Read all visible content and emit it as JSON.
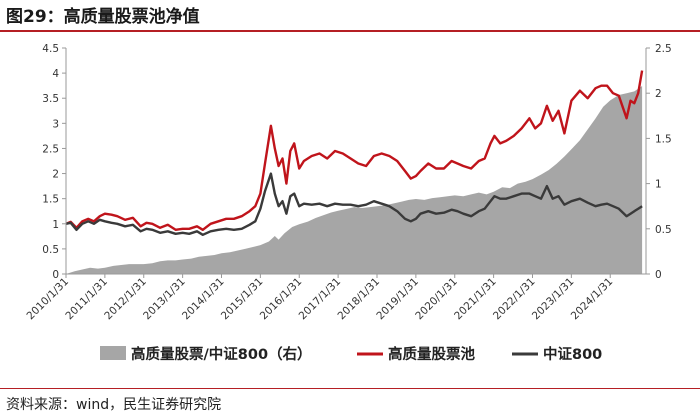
{
  "figure": {
    "title": "图29：高质量股票池净值",
    "source": "资料来源：wind，民生证券研究院"
  },
  "colors": {
    "area": "#a6a6a6",
    "pool": "#c0141b",
    "csi800": "#3a3a3a",
    "accent_rule": "#b51f24"
  },
  "chart_data": {
    "type": "line",
    "title": "",
    "xlabel": "",
    "ylabel": "",
    "ylim": [
      0,
      4.5
    ],
    "y2lim": [
      0,
      2.5
    ],
    "yticks": [
      "0",
      "0.5",
      "1",
      "1.5",
      "2",
      "2.5",
      "3",
      "3.5",
      "4",
      "4.5"
    ],
    "y2ticks": [
      "0",
      "0.5",
      "1",
      "1.5",
      "2",
      "2.5"
    ],
    "x_tick_labels": [
      "2010/1/31",
      "2011/1/31",
      "2012/1/31",
      "2013/1/31",
      "2014/1/31",
      "2015/1/31",
      "2016/1/31",
      "2017/1/31",
      "2018/1/31",
      "2019/1/31",
      "2020/1/31",
      "2021/1/31",
      "2022/1/31",
      "2023/1/31",
      "2024/1/31"
    ],
    "x_range": [
      2010.08,
      2025.0
    ],
    "grid": false,
    "legend_position": "bottom",
    "series": [
      {
        "name": "高质量股票/中证800（右）",
        "type": "area",
        "axis": "right",
        "x": [
          2010.08,
          2010.3,
          2010.5,
          2010.7,
          2010.9,
          2011.08,
          2011.3,
          2011.5,
          2011.7,
          2011.9,
          2012.08,
          2012.3,
          2012.5,
          2012.7,
          2012.9,
          2013.08,
          2013.3,
          2013.5,
          2013.7,
          2013.9,
          2014.08,
          2014.3,
          2014.5,
          2014.7,
          2014.9,
          2015.08,
          2015.3,
          2015.45,
          2015.55,
          2015.7,
          2015.9,
          2016.08,
          2016.3,
          2016.5,
          2016.7,
          2016.9,
          2017.08,
          2017.3,
          2017.5,
          2017.7,
          2017.9,
          2018.08,
          2018.3,
          2018.5,
          2018.7,
          2018.9,
          2019.08,
          2019.3,
          2019.5,
          2019.7,
          2019.9,
          2020.08,
          2020.3,
          2020.5,
          2020.7,
          2020.9,
          2021.08,
          2021.3,
          2021.5,
          2021.7,
          2021.9,
          2022.08,
          2022.3,
          2022.5,
          2022.7,
          2022.9,
          2023.08,
          2023.3,
          2023.5,
          2023.7,
          2023.9,
          2024.08,
          2024.3,
          2024.5,
          2024.7,
          2024.9
        ],
        "values": [
          0.0,
          0.03,
          0.05,
          0.07,
          0.06,
          0.07,
          0.09,
          0.1,
          0.11,
          0.11,
          0.11,
          0.12,
          0.14,
          0.15,
          0.15,
          0.16,
          0.17,
          0.19,
          0.2,
          0.21,
          0.23,
          0.24,
          0.26,
          0.28,
          0.3,
          0.32,
          0.36,
          0.42,
          0.38,
          0.45,
          0.52,
          0.55,
          0.58,
          0.62,
          0.65,
          0.68,
          0.7,
          0.72,
          0.74,
          0.73,
          0.74,
          0.75,
          0.76,
          0.78,
          0.8,
          0.82,
          0.83,
          0.82,
          0.84,
          0.85,
          0.86,
          0.87,
          0.86,
          0.88,
          0.9,
          0.88,
          0.91,
          0.96,
          0.95,
          1.0,
          1.02,
          1.05,
          1.1,
          1.15,
          1.22,
          1.3,
          1.38,
          1.48,
          1.6,
          1.72,
          1.85,
          1.92,
          1.98,
          2.0,
          2.02,
          2.08
        ]
      },
      {
        "name": "高质量股票池",
        "type": "line",
        "axis": "left",
        "x": [
          2010.08,
          2010.2,
          2010.35,
          2010.5,
          2010.65,
          2010.8,
          2010.95,
          2011.08,
          2011.25,
          2011.4,
          2011.6,
          2011.8,
          2012.0,
          2012.15,
          2012.3,
          2012.5,
          2012.7,
          2012.9,
          2013.08,
          2013.25,
          2013.45,
          2013.6,
          2013.8,
          2014.0,
          2014.2,
          2014.4,
          2014.6,
          2014.8,
          2014.95,
          2015.08,
          2015.2,
          2015.35,
          2015.45,
          2015.55,
          2015.65,
          2015.75,
          2015.85,
          2015.95,
          2016.08,
          2016.2,
          2016.4,
          2016.6,
          2016.8,
          2017.0,
          2017.2,
          2017.4,
          2017.6,
          2017.8,
          2018.0,
          2018.2,
          2018.4,
          2018.6,
          2018.8,
          2018.95,
          2019.08,
          2019.2,
          2019.4,
          2019.6,
          2019.8,
          2020.0,
          2020.15,
          2020.3,
          2020.5,
          2020.7,
          2020.85,
          2021.0,
          2021.1,
          2021.25,
          2021.4,
          2021.6,
          2021.8,
          2022.0,
          2022.15,
          2022.3,
          2022.45,
          2022.6,
          2022.75,
          2022.9,
          2023.08,
          2023.3,
          2023.5,
          2023.7,
          2023.85,
          2024.0,
          2024.15,
          2024.3,
          2024.5,
          2024.6,
          2024.7,
          2024.8,
          2024.9
        ],
        "values": [
          1.0,
          1.04,
          0.92,
          1.05,
          1.1,
          1.05,
          1.15,
          1.2,
          1.18,
          1.15,
          1.08,
          1.12,
          0.95,
          1.02,
          1.0,
          0.92,
          0.98,
          0.88,
          0.9,
          0.9,
          0.95,
          0.88,
          1.0,
          1.05,
          1.1,
          1.1,
          1.15,
          1.25,
          1.35,
          1.6,
          2.2,
          2.95,
          2.5,
          2.15,
          2.3,
          1.8,
          2.45,
          2.6,
          2.1,
          2.25,
          2.35,
          2.4,
          2.3,
          2.45,
          2.4,
          2.3,
          2.2,
          2.15,
          2.35,
          2.4,
          2.35,
          2.25,
          2.05,
          1.9,
          1.95,
          2.05,
          2.2,
          2.1,
          2.1,
          2.25,
          2.2,
          2.15,
          2.1,
          2.25,
          2.3,
          2.6,
          2.75,
          2.6,
          2.65,
          2.75,
          2.9,
          3.1,
          2.9,
          3.0,
          3.35,
          3.05,
          3.25,
          2.8,
          3.45,
          3.65,
          3.5,
          3.7,
          3.75,
          3.75,
          3.6,
          3.55,
          3.1,
          3.45,
          3.4,
          3.6,
          4.05
        ]
      },
      {
        "name": "中证800",
        "type": "line",
        "axis": "left",
        "x": [
          2010.08,
          2010.2,
          2010.35,
          2010.5,
          2010.65,
          2010.8,
          2010.95,
          2011.08,
          2011.25,
          2011.4,
          2011.6,
          2011.8,
          2012.0,
          2012.15,
          2012.3,
          2012.5,
          2012.7,
          2012.9,
          2013.08,
          2013.25,
          2013.45,
          2013.6,
          2013.8,
          2014.0,
          2014.2,
          2014.4,
          2014.6,
          2014.8,
          2014.95,
          2015.08,
          2015.2,
          2015.35,
          2015.45,
          2015.55,
          2015.65,
          2015.75,
          2015.85,
          2015.95,
          2016.08,
          2016.2,
          2016.4,
          2016.6,
          2016.8,
          2017.0,
          2017.2,
          2017.4,
          2017.6,
          2017.8,
          2018.0,
          2018.2,
          2018.4,
          2018.6,
          2018.8,
          2018.95,
          2019.08,
          2019.2,
          2019.4,
          2019.6,
          2019.8,
          2020.0,
          2020.15,
          2020.3,
          2020.5,
          2020.7,
          2020.85,
          2021.0,
          2021.1,
          2021.25,
          2021.4,
          2021.6,
          2021.8,
          2022.0,
          2022.15,
          2022.3,
          2022.45,
          2022.6,
          2022.75,
          2022.9,
          2023.08,
          2023.3,
          2023.5,
          2023.7,
          2023.85,
          2024.0,
          2024.15,
          2024.3,
          2024.5,
          2024.6,
          2024.7,
          2024.8,
          2024.9
        ],
        "values": [
          1.0,
          1.02,
          0.88,
          1.0,
          1.05,
          1.0,
          1.08,
          1.05,
          1.02,
          1.0,
          0.95,
          0.98,
          0.85,
          0.9,
          0.88,
          0.82,
          0.85,
          0.8,
          0.82,
          0.8,
          0.85,
          0.78,
          0.85,
          0.88,
          0.9,
          0.88,
          0.9,
          0.98,
          1.05,
          1.3,
          1.65,
          2.0,
          1.6,
          1.35,
          1.45,
          1.2,
          1.55,
          1.6,
          1.35,
          1.4,
          1.38,
          1.4,
          1.35,
          1.4,
          1.38,
          1.38,
          1.35,
          1.38,
          1.45,
          1.4,
          1.35,
          1.25,
          1.1,
          1.05,
          1.1,
          1.2,
          1.25,
          1.2,
          1.22,
          1.28,
          1.25,
          1.2,
          1.15,
          1.25,
          1.3,
          1.45,
          1.55,
          1.5,
          1.5,
          1.55,
          1.6,
          1.6,
          1.55,
          1.5,
          1.75,
          1.5,
          1.55,
          1.38,
          1.45,
          1.5,
          1.42,
          1.35,
          1.38,
          1.4,
          1.35,
          1.3,
          1.15,
          1.2,
          1.25,
          1.3,
          1.35
        ]
      }
    ]
  }
}
